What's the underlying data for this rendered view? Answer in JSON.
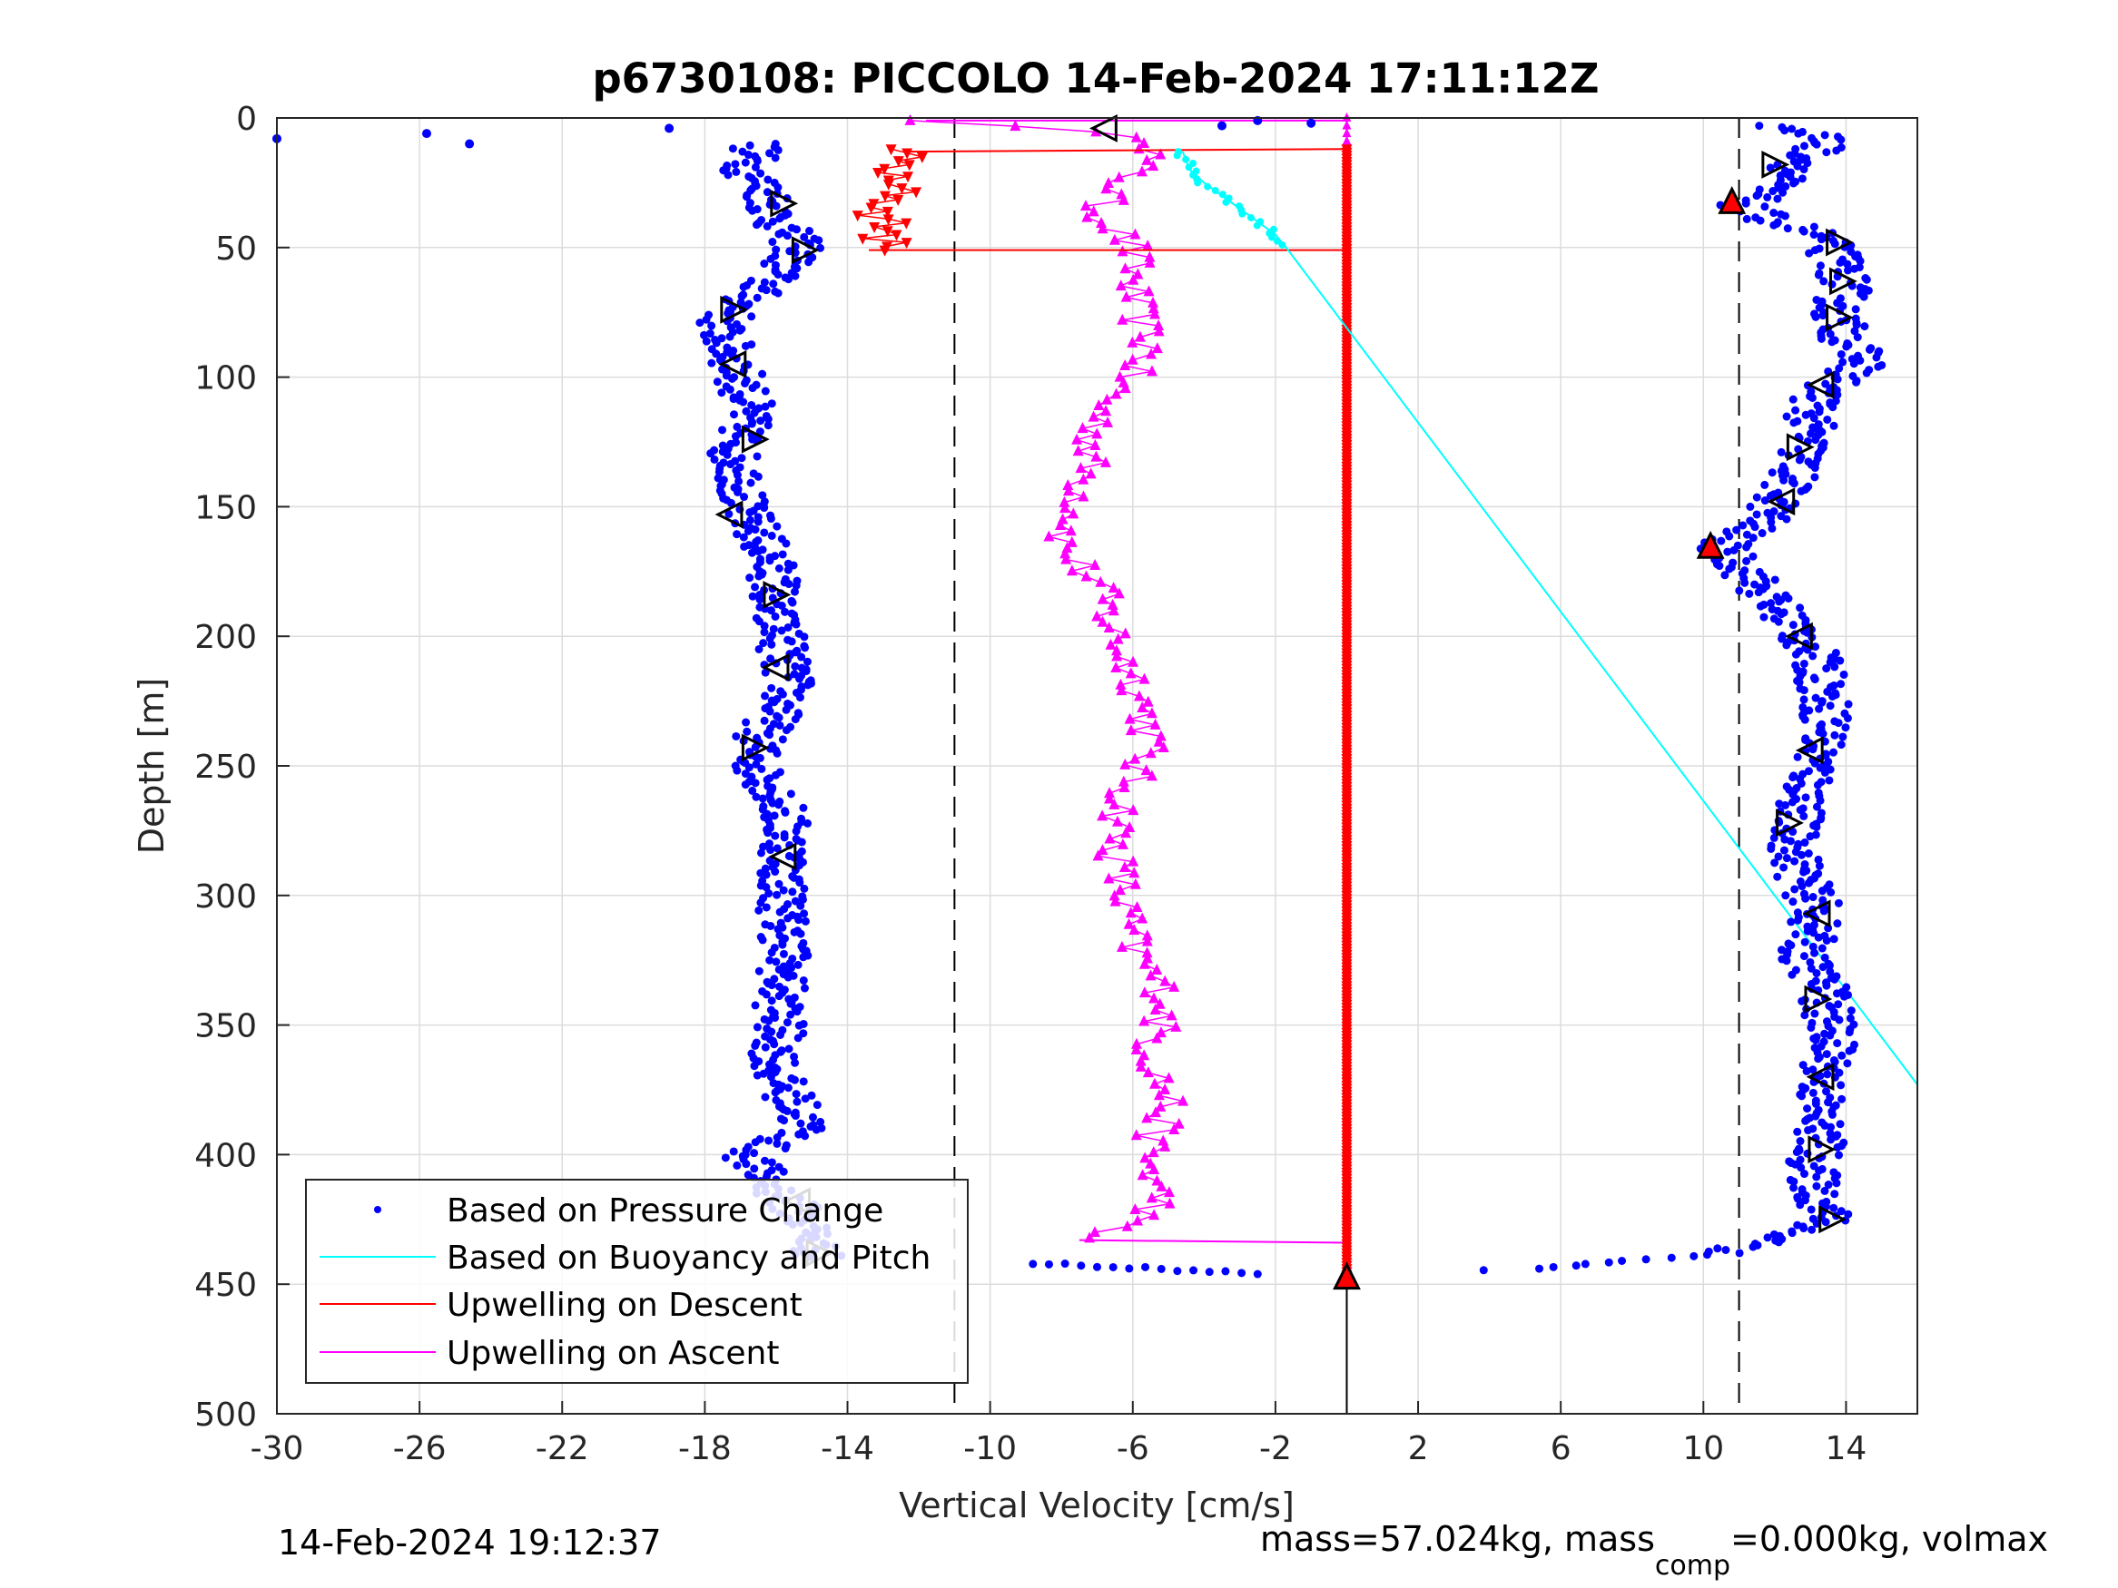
{
  "chart_data": {
    "type": "scatter",
    "title": "p6730108: PICCOLO 14-Feb-2024 17:11:12Z",
    "xlabel": "Vertical Velocity [cm/s]",
    "ylabel": "Depth [m]",
    "xlim": [
      -30,
      16
    ],
    "ylim": [
      0,
      500
    ],
    "y_reversed": true,
    "grid": true,
    "x_ticks": [
      "-30",
      "-26",
      "-22",
      "-18",
      "-14",
      "-10",
      "-6",
      "-2",
      "2",
      "6",
      "10",
      "14"
    ],
    "y_ticks": [
      "0",
      "50",
      "100",
      "150",
      "200",
      "250",
      "300",
      "350",
      "400",
      "450",
      "500"
    ],
    "vertical_dashed_lines": [
      -11,
      11
    ],
    "vertical_solid_line": 0,
    "legend_placement": "bottom-left",
    "legend": [
      "Based on Pressure Change",
      "Based on Buoyancy and Pitch",
      "Upwelling on Descent",
      "Upwelling on Ascent"
    ],
    "colors": {
      "pressure": "#0000ff",
      "buoyancy": "#00ffff",
      "descent": "#ff0000",
      "ascent": "#ff00ff",
      "marker": "#000000"
    },
    "series": [
      {
        "name": "Based on Pressure Change",
        "descent": [
          {
            "depth": 10,
            "v": -16.5
          },
          {
            "depth": 20,
            "v": -16.8
          },
          {
            "depth": 30,
            "v": -16.2
          },
          {
            "depth": 40,
            "v": -16.0
          },
          {
            "depth": 50,
            "v": -15.3
          },
          {
            "depth": 60,
            "v": -16.0
          },
          {
            "depth": 70,
            "v": -16.8
          },
          {
            "depth": 80,
            "v": -17.6
          },
          {
            "depth": 90,
            "v": -17.3
          },
          {
            "depth": 100,
            "v": -17.0
          },
          {
            "depth": 110,
            "v": -16.8
          },
          {
            "depth": 120,
            "v": -16.9
          },
          {
            "depth": 130,
            "v": -17.2
          },
          {
            "depth": 140,
            "v": -16.9
          },
          {
            "depth": 150,
            "v": -17.0
          },
          {
            "depth": 160,
            "v": -16.5
          },
          {
            "depth": 170,
            "v": -16.2
          },
          {
            "depth": 180,
            "v": -16.0
          },
          {
            "depth": 190,
            "v": -16.2
          },
          {
            "depth": 200,
            "v": -15.8
          },
          {
            "depth": 210,
            "v": -15.8
          },
          {
            "depth": 220,
            "v": -15.6
          },
          {
            "depth": 230,
            "v": -16.0
          },
          {
            "depth": 240,
            "v": -16.5
          },
          {
            "depth": 250,
            "v": -16.6
          },
          {
            "depth": 260,
            "v": -16.0
          },
          {
            "depth": 270,
            "v": -15.8
          },
          {
            "depth": 280,
            "v": -15.7
          },
          {
            "depth": 290,
            "v": -15.8
          },
          {
            "depth": 300,
            "v": -15.8
          },
          {
            "depth": 310,
            "v": -15.8
          },
          {
            "depth": 320,
            "v": -15.7
          },
          {
            "depth": 330,
            "v": -15.8
          },
          {
            "depth": 340,
            "v": -15.9
          },
          {
            "depth": 350,
            "v": -15.9
          },
          {
            "depth": 360,
            "v": -16.0
          },
          {
            "depth": 370,
            "v": -16.0
          },
          {
            "depth": 380,
            "v": -15.5
          },
          {
            "depth": 390,
            "v": -15.2
          },
          {
            "depth": 400,
            "v": -16.8
          },
          {
            "depth": 410,
            "v": -16.3
          },
          {
            "depth": 420,
            "v": -15.5
          },
          {
            "depth": 430,
            "v": -15.0
          },
          {
            "depth": 440,
            "v": -14.8
          }
        ],
        "ascent": [
          {
            "depth": 445,
            "v": 3.0
          },
          {
            "depth": 444,
            "v": 5.0
          },
          {
            "depth": 442,
            "v": 7.0
          },
          {
            "depth": 440,
            "v": 9.0
          },
          {
            "depth": 438,
            "v": 10.5
          },
          {
            "depth": 434,
            "v": 11.8
          },
          {
            "depth": 425,
            "v": 13.5
          },
          {
            "depth": 415,
            "v": 13.2
          },
          {
            "depth": 405,
            "v": 13.0
          },
          {
            "depth": 395,
            "v": 13.3
          },
          {
            "depth": 385,
            "v": 13.2
          },
          {
            "depth": 375,
            "v": 13.3
          },
          {
            "depth": 365,
            "v": 13.5
          },
          {
            "depth": 355,
            "v": 13.6
          },
          {
            "depth": 345,
            "v": 13.5
          },
          {
            "depth": 335,
            "v": 13.4
          },
          {
            "depth": 325,
            "v": 12.8
          },
          {
            "depth": 315,
            "v": 13.0
          },
          {
            "depth": 305,
            "v": 13.2
          },
          {
            "depth": 295,
            "v": 12.8
          },
          {
            "depth": 285,
            "v": 12.6
          },
          {
            "depth": 275,
            "v": 12.5
          },
          {
            "depth": 265,
            "v": 12.8
          },
          {
            "depth": 255,
            "v": 13.0
          },
          {
            "depth": 245,
            "v": 13.2
          },
          {
            "depth": 235,
            "v": 13.5
          },
          {
            "depth": 225,
            "v": 13.4
          },
          {
            "depth": 215,
            "v": 13.3
          },
          {
            "depth": 205,
            "v": 13.0
          },
          {
            "depth": 195,
            "v": 12.5
          },
          {
            "depth": 185,
            "v": 11.8
          },
          {
            "depth": 175,
            "v": 11.2
          },
          {
            "depth": 165,
            "v": 10.5
          },
          {
            "depth": 155,
            "v": 11.7
          },
          {
            "depth": 145,
            "v": 12.2
          },
          {
            "depth": 135,
            "v": 12.6
          },
          {
            "depth": 125,
            "v": 12.9
          },
          {
            "depth": 115,
            "v": 13.0
          },
          {
            "depth": 105,
            "v": 13.3
          },
          {
            "depth": 95,
            "v": 14.5
          },
          {
            "depth": 85,
            "v": 14.0
          },
          {
            "depth": 75,
            "v": 13.7
          },
          {
            "depth": 65,
            "v": 14.0
          },
          {
            "depth": 55,
            "v": 13.8
          },
          {
            "depth": 45,
            "v": 13.2
          },
          {
            "depth": 35,
            "v": 11.0
          },
          {
            "depth": 25,
            "v": 12.0
          },
          {
            "depth": 15,
            "v": 13.0
          },
          {
            "depth": 8,
            "v": 13.5
          },
          {
            "depth": 3,
            "v": 12.0
          }
        ],
        "surface_outliers": [
          {
            "depth": 8,
            "v": -30.0
          },
          {
            "depth": 6,
            "v": -25.8
          },
          {
            "depth": 10,
            "v": -24.6
          },
          {
            "depth": 4,
            "v": -19.0
          },
          {
            "depth": 2,
            "v": -1.0
          },
          {
            "depth": 1,
            "v": -2.5
          },
          {
            "depth": 3,
            "v": -3.5
          }
        ]
      },
      {
        "name": "Based on Buoyancy and Pitch",
        "points": [
          {
            "depth": 13,
            "v": -4.6
          },
          {
            "depth": 20,
            "v": -4.4
          },
          {
            "depth": 25,
            "v": -4.0
          },
          {
            "depth": 30,
            "v": -3.5
          },
          {
            "depth": 35,
            "v": -3.0
          },
          {
            "depth": 40,
            "v": -2.5
          },
          {
            "depth": 45,
            "v": -2.0
          },
          {
            "depth": 50,
            "v": -1.7
          },
          {
            "depth": 373,
            "v": 16.0
          }
        ]
      },
      {
        "name": "Upwelling on Descent",
        "points": [
          {
            "depth": 12,
            "v": -12.3
          },
          {
            "depth": 18,
            "v": -12.6
          },
          {
            "depth": 24,
            "v": -13.0
          },
          {
            "depth": 30,
            "v": -12.5
          },
          {
            "depth": 36,
            "v": -13.2
          },
          {
            "depth": 42,
            "v": -12.8
          },
          {
            "depth": 48,
            "v": -13.0
          },
          {
            "depth": 51,
            "v": -13.4
          }
        ],
        "zero_band": [
          12,
          447
        ]
      },
      {
        "name": "Upwelling on Ascent",
        "points": [
          {
            "depth": 433,
            "v": -7.5
          },
          {
            "depth": 420,
            "v": -5.2
          },
          {
            "depth": 400,
            "v": -5.6
          },
          {
            "depth": 380,
            "v": -5.0
          },
          {
            "depth": 360,
            "v": -5.5
          },
          {
            "depth": 340,
            "v": -5.0
          },
          {
            "depth": 320,
            "v": -6.0
          },
          {
            "depth": 300,
            "v": -6.3
          },
          {
            "depth": 280,
            "v": -6.5
          },
          {
            "depth": 260,
            "v": -6.2
          },
          {
            "depth": 240,
            "v": -5.5
          },
          {
            "depth": 220,
            "v": -5.8
          },
          {
            "depth": 200,
            "v": -6.5
          },
          {
            "depth": 180,
            "v": -7.0
          },
          {
            "depth": 165,
            "v": -8.0
          },
          {
            "depth": 150,
            "v": -7.5
          },
          {
            "depth": 130,
            "v": -7.2
          },
          {
            "depth": 110,
            "v": -6.8
          },
          {
            "depth": 90,
            "v": -5.5
          },
          {
            "depth": 70,
            "v": -6.0
          },
          {
            "depth": 50,
            "v": -6.0
          },
          {
            "depth": 35,
            "v": -7.0
          },
          {
            "depth": 20,
            "v": -6.0
          },
          {
            "depth": 8,
            "v": -5.0
          },
          {
            "depth": 1,
            "v": -11.8
          }
        ],
        "zero_band": [
          0,
          433
        ]
      }
    ],
    "triangle_markers": {
      "descent": [
        {
          "depth": 4,
          "v": -6.8,
          "dir": "left"
        },
        {
          "depth": 33,
          "v": -15.8,
          "dir": "right"
        },
        {
          "depth": 51,
          "v": -15.2,
          "dir": "right"
        },
        {
          "depth": 74,
          "v": -17.2,
          "dir": "right"
        },
        {
          "depth": 95,
          "v": -17.2,
          "dir": "left"
        },
        {
          "depth": 124,
          "v": -16.6,
          "dir": "right"
        },
        {
          "depth": 153,
          "v": -17.3,
          "dir": "left"
        },
        {
          "depth": 184,
          "v": -16.0,
          "dir": "right"
        },
        {
          "depth": 212,
          "v": -16.0,
          "dir": "left"
        },
        {
          "depth": 243,
          "v": -16.6,
          "dir": "right"
        },
        {
          "depth": 285,
          "v": -15.8,
          "dir": "left"
        },
        {
          "depth": 418,
          "v": -15.4,
          "dir": "left"
        },
        {
          "depth": 438,
          "v": -14.8,
          "dir": "right"
        }
      ],
      "ascent": [
        {
          "depth": 18,
          "v": 12.0,
          "dir": "right"
        },
        {
          "depth": 32,
          "v": 10.8,
          "dir": "up"
        },
        {
          "depth": 48,
          "v": 13.8,
          "dir": "right"
        },
        {
          "depth": 63,
          "v": 13.9,
          "dir": "right"
        },
        {
          "depth": 77,
          "v": 13.8,
          "dir": "right"
        },
        {
          "depth": 103,
          "v": 13.3,
          "dir": "left"
        },
        {
          "depth": 127,
          "v": 12.7,
          "dir": "right"
        },
        {
          "depth": 148,
          "v": 12.2,
          "dir": "left"
        },
        {
          "depth": 165,
          "v": 10.2,
          "dir": "up"
        },
        {
          "depth": 200,
          "v": 12.7,
          "dir": "left"
        },
        {
          "depth": 244,
          "v": 13.0,
          "dir": "left"
        },
        {
          "depth": 272,
          "v": 12.4,
          "dir": "right"
        },
        {
          "depth": 307,
          "v": 13.2,
          "dir": "left"
        },
        {
          "depth": 340,
          "v": 13.2,
          "dir": "right"
        },
        {
          "depth": 370,
          "v": 13.3,
          "dir": "left"
        },
        {
          "depth": 398,
          "v": 13.3,
          "dir": "right"
        },
        {
          "depth": 425,
          "v": 13.6,
          "dir": "right"
        },
        {
          "depth": 447,
          "v": 0,
          "dir": "up"
        }
      ]
    }
  },
  "footer": {
    "timestamp": "14-Feb-2024 19:12:37",
    "mass_text_pre": "mass=57.024kg, mass",
    "mass_sub": "comp",
    "mass_text_post": "=0.000kg, volmax"
  }
}
